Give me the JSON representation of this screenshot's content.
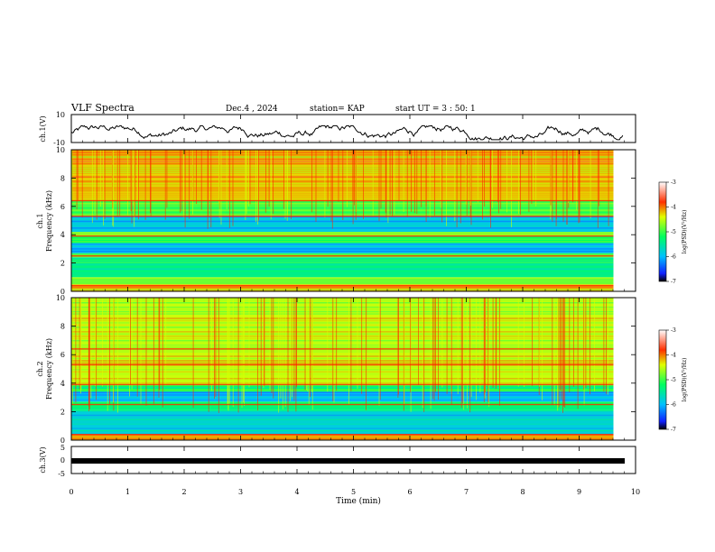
{
  "header": {
    "title": "VLF Spectra",
    "date": "Dec.4 , 2024",
    "station": "station= KAP",
    "start": "start UT = 3 : 50: 1"
  },
  "chart_data": [
    {
      "type": "line",
      "name": "ch1-waveform-panel",
      "ylabel": "ch.1(V)",
      "ylim": [
        -10,
        10
      ],
      "yticks": [
        "10",
        "-10"
      ],
      "xlim": [
        0,
        10
      ],
      "approx_range": [
        -8,
        2
      ]
    },
    {
      "type": "heatmap",
      "name": "ch1-spectrogram",
      "ylabel": "ch.1 Frequency (kHz)",
      "ylabel_lines": [
        "ch.1",
        "Frequency (kHz)"
      ],
      "ylim": [
        0,
        10
      ],
      "yticks": [
        "0",
        "2",
        "4",
        "6",
        "8",
        "10"
      ],
      "xlim": [
        0,
        9.8
      ],
      "bands": [
        {
          "from": 0.0,
          "to": 0.5,
          "level": -4.2
        },
        {
          "from": 0.5,
          "to": 1.0,
          "level": -4.8
        },
        {
          "from": 1.0,
          "to": 2.4,
          "level": -5.4
        },
        {
          "from": 2.4,
          "to": 2.7,
          "level": -4.8
        },
        {
          "from": 2.7,
          "to": 3.4,
          "level": -6.0
        },
        {
          "from": 3.4,
          "to": 3.9,
          "level": -5.2
        },
        {
          "from": 3.9,
          "to": 4.2,
          "level": -4.8
        },
        {
          "from": 4.2,
          "to": 5.3,
          "level": -5.9
        },
        {
          "from": 5.3,
          "to": 6.4,
          "level": -5.0
        },
        {
          "from": 6.4,
          "to": 10.0,
          "level": -4.2
        }
      ],
      "colorbar": {
        "label": "log(PSD)(V²/Hz)",
        "range": [
          -7,
          -3
        ],
        "ticks": [
          "-3",
          "-4",
          "-5",
          "-6",
          "-7"
        ]
      }
    },
    {
      "type": "heatmap",
      "name": "ch2-spectrogram",
      "ylabel": "ch.2 Frequency (kHz)",
      "ylabel_lines": [
        "ch.2",
        "Frequency (kHz)"
      ],
      "ylim": [
        0,
        10
      ],
      "yticks": [
        "0",
        "2",
        "4",
        "6",
        "8",
        "10"
      ],
      "xlim": [
        0,
        9.8
      ],
      "bands": [
        {
          "from": 0.0,
          "to": 0.4,
          "level": -4.2
        },
        {
          "from": 0.4,
          "to": 2.1,
          "level": -5.8
        },
        {
          "from": 2.1,
          "to": 2.7,
          "level": -5.2
        },
        {
          "from": 2.7,
          "to": 3.4,
          "level": -6.0
        },
        {
          "from": 3.4,
          "to": 3.9,
          "level": -5.2
        },
        {
          "from": 3.9,
          "to": 10.0,
          "level": -4.5
        }
      ],
      "colorbar": {
        "label": "log(PSD)(V²/Hz)",
        "range": [
          -7,
          -3
        ],
        "ticks": [
          "-3",
          "-4",
          "-5",
          "-6",
          "-7"
        ]
      }
    },
    {
      "type": "line",
      "name": "ch3-waveform-panel",
      "ylabel": "ch.3(V)",
      "ylim": [
        -5,
        5
      ],
      "yticks": [
        "5",
        "0",
        "-5"
      ],
      "xlim": [
        0,
        10
      ],
      "xlabel": "Time (min)",
      "xticks": [
        "0",
        "1",
        "2",
        "3",
        "4",
        "5",
        "6",
        "7",
        "8",
        "9",
        "10"
      ],
      "approx_level": 0
    }
  ]
}
